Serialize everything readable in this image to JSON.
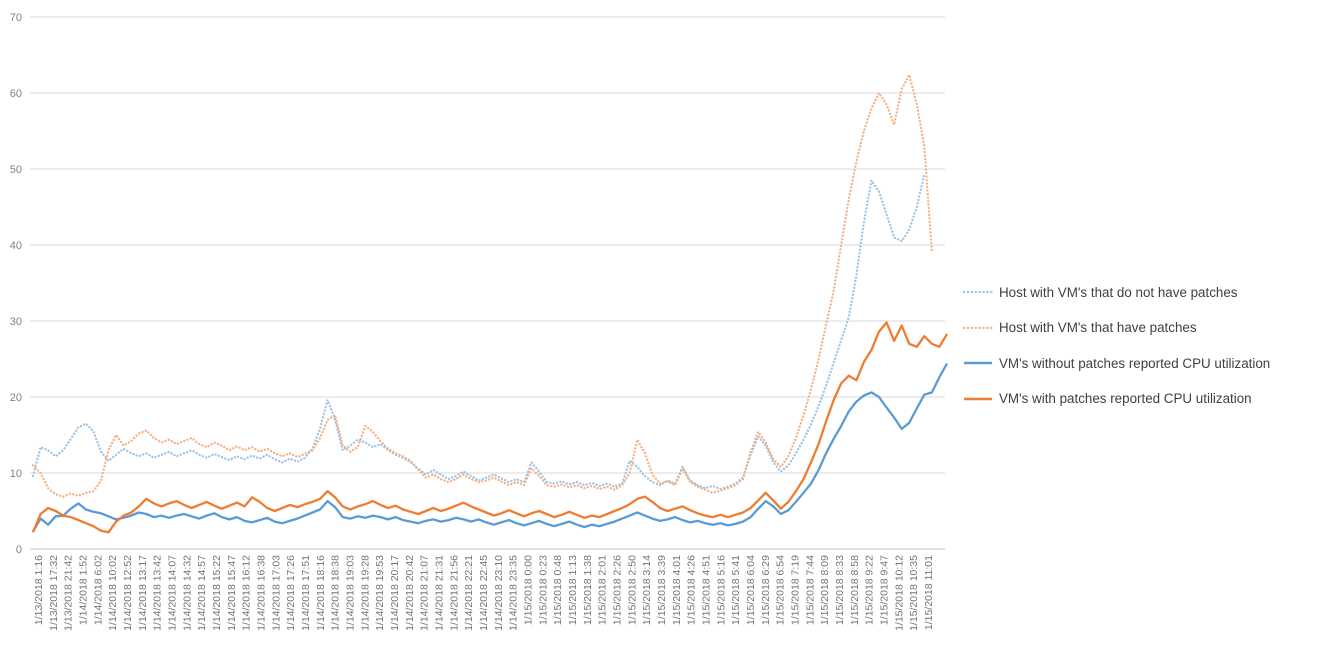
{
  "chart_data": {
    "type": "line",
    "title": "",
    "ylim": [
      0,
      70
    ],
    "y_tick_step": 10,
    "grid": true,
    "legend_position": "right",
    "y_tick_labels": [
      "0",
      "10",
      "20",
      "30",
      "40",
      "50",
      "60",
      "70"
    ],
    "x_tick_labels": [
      "1/13/2018 1:16",
      "1/13/2018 17:32",
      "1/13/2018 21:42",
      "1/14/2018 1:52",
      "1/14/2018 6:02",
      "1/14/2018 10:02",
      "1/14/2018 12:52",
      "1/14/2018 13:17",
      "1/14/2018 13:42",
      "1/14/2018 14:07",
      "1/14/2018 14:32",
      "1/14/2018 14:57",
      "1/14/2018 15:22",
      "1/14/2018 15:47",
      "1/14/2018 16:12",
      "1/14/2018 16:38",
      "1/14/2018 17:03",
      "1/14/2018 17:26",
      "1/14/2018 17:51",
      "1/14/2018 18:16",
      "1/14/2018 18:38",
      "1/14/2018 19:03",
      "1/14/2018 19:28",
      "1/14/2018 19:53",
      "1/14/2018 20:17",
      "1/14/2018 20:42",
      "1/14/2018 21:07",
      "1/14/2018 21:31",
      "1/14/2018 21:56",
      "1/14/2018 22:21",
      "1/14/2018 22:45",
      "1/14/2018 23:10",
      "1/14/2018 23:35",
      "1/15/2018 0:00",
      "1/15/2018 0:23",
      "1/15/2018 0:48",
      "1/15/2018 1:13",
      "1/15/2018 1:38",
      "1/15/2018 2:01",
      "1/15/2018 2:26",
      "1/15/2018 2:50",
      "1/15/2018 3:14",
      "1/15/2018 3:39",
      "1/15/2018 4:01",
      "1/15/2018 4:26",
      "1/15/2018 4:51",
      "1/15/2018 5:16",
      "1/15/2018 5:41",
      "1/15/2018 6:04",
      "1/15/2018 6:29",
      "1/15/2018 6:54",
      "1/15/2018 7:19",
      "1/15/2018 7:44",
      "1/15/2018 8:09",
      "1/15/2018 8:33",
      "1/15/2018 8:58",
      "1/15/2018 9:22",
      "1/15/2018 9:47",
      "1/15/2018 10:12",
      "1/15/2018 10:35",
      "1/15/2018 11:01"
    ],
    "colors": {
      "grid": "#D9D9D9",
      "axis_line": "#BFBFBF",
      "tick_text": "#757575"
    },
    "series": [
      {
        "name": "Host with VM's that do not have patches",
        "key": "host-without-patches",
        "color": "#9DC3E6",
        "dash": "dot",
        "values": [
          9.6,
          13.4,
          13.0,
          12.2,
          13.0,
          14.5,
          16.0,
          16.5,
          15.5,
          12.8,
          11.6,
          12.4,
          13.2,
          12.6,
          12.2,
          12.6,
          12.0,
          12.4,
          12.8,
          12.2,
          12.6,
          13.0,
          12.4,
          12.0,
          12.5,
          12.1,
          11.7,
          12.2,
          11.8,
          12.3,
          11.9,
          12.4,
          11.8,
          11.4,
          11.9,
          11.5,
          12.0,
          13.2,
          15.8,
          19.6,
          17.0,
          13.0,
          13.6,
          14.4,
          14.0,
          13.4,
          13.8,
          13.0,
          12.4,
          12.0,
          11.4,
          10.6,
          9.8,
          10.4,
          9.8,
          9.2,
          9.6,
          10.2,
          9.6,
          9.0,
          9.4,
          9.8,
          9.3,
          8.8,
          9.2,
          8.8,
          11.4,
          10.2,
          8.8,
          8.6,
          8.9,
          8.5,
          8.8,
          8.4,
          8.7,
          8.3,
          8.6,
          8.2,
          8.6,
          11.6,
          10.8,
          9.6,
          8.8,
          8.4,
          9.0,
          8.6,
          10.8,
          9.0,
          8.4,
          8.0,
          8.3,
          7.9,
          8.2,
          8.6,
          9.4,
          12.4,
          14.8,
          13.6,
          11.4,
          10.2,
          11.0,
          12.6,
          14.4,
          16.4,
          18.8,
          21.5,
          24.5,
          27.5,
          30.5,
          36.0,
          43.0,
          48.5,
          47.0,
          44.0,
          41.0,
          40.5,
          42.0,
          45.0,
          49.3,
          null,
          null,
          null
        ]
      },
      {
        "name": "Host with VM's that have patches",
        "key": "host-with-patches",
        "color": "#F4B183",
        "dash": "dot",
        "values": [
          11.0,
          10.0,
          8.0,
          7.2,
          6.9,
          7.3,
          7.0,
          7.4,
          7.6,
          9.0,
          13.0,
          15.0,
          13.6,
          14.2,
          15.2,
          15.6,
          14.6,
          14.0,
          14.4,
          13.8,
          14.2,
          14.6,
          13.8,
          13.4,
          14.0,
          13.6,
          13.0,
          13.5,
          13.0,
          13.4,
          12.8,
          13.2,
          12.6,
          12.2,
          12.6,
          12.1,
          12.5,
          13.0,
          14.6,
          17.0,
          17.6,
          13.6,
          12.8,
          13.4,
          16.2,
          15.4,
          14.2,
          13.2,
          12.6,
          12.2,
          11.6,
          10.4,
          9.4,
          9.8,
          9.2,
          8.8,
          9.2,
          9.8,
          9.2,
          8.8,
          9.0,
          9.4,
          8.9,
          8.4,
          8.8,
          8.4,
          10.6,
          9.6,
          8.4,
          8.2,
          8.5,
          8.1,
          8.4,
          8.0,
          8.3,
          7.9,
          8.2,
          7.8,
          8.4,
          10.0,
          14.4,
          12.6,
          9.8,
          8.6,
          8.9,
          8.4,
          10.6,
          8.8,
          8.2,
          7.8,
          7.4,
          7.7,
          8.0,
          8.4,
          9.2,
          12.8,
          15.4,
          14.0,
          11.8,
          10.8,
          12.2,
          14.6,
          17.6,
          21.0,
          25.0,
          29.5,
          34.0,
          40.0,
          46.0,
          51.0,
          55.0,
          58.0,
          60.0,
          58.5,
          55.8,
          60.5,
          62.4,
          58.5,
          53.0,
          39.0,
          null,
          null
        ]
      },
      {
        "name": "VM's without patches reported CPU utilization",
        "key": "vm-without-patches",
        "color": "#5B9BD5",
        "dash": "solid",
        "values": [
          2.3,
          4.0,
          3.2,
          4.3,
          4.4,
          5.3,
          6.0,
          5.2,
          4.9,
          4.7,
          4.3,
          3.9,
          4.1,
          4.4,
          4.8,
          4.6,
          4.2,
          4.4,
          4.1,
          4.4,
          4.6,
          4.3,
          4.0,
          4.4,
          4.7,
          4.2,
          3.9,
          4.2,
          3.7,
          3.5,
          3.8,
          4.1,
          3.6,
          3.4,
          3.7,
          4.0,
          4.4,
          4.8,
          5.2,
          6.3,
          5.5,
          4.2,
          4.0,
          4.3,
          4.1,
          4.4,
          4.2,
          3.9,
          4.2,
          3.8,
          3.6,
          3.4,
          3.7,
          3.9,
          3.6,
          3.8,
          4.1,
          3.9,
          3.6,
          3.9,
          3.5,
          3.2,
          3.5,
          3.8,
          3.4,
          3.1,
          3.4,
          3.7,
          3.3,
          3.0,
          3.3,
          3.6,
          3.2,
          2.9,
          3.2,
          3.0,
          3.3,
          3.6,
          4.0,
          4.4,
          4.8,
          4.4,
          4.0,
          3.7,
          3.9,
          4.2,
          3.8,
          3.5,
          3.7,
          3.4,
          3.2,
          3.4,
          3.1,
          3.3,
          3.6,
          4.2,
          5.3,
          6.3,
          5.6,
          4.6,
          5.1,
          6.2,
          7.4,
          8.6,
          10.4,
          12.6,
          14.5,
          16.2,
          18.1,
          19.4,
          20.2,
          20.6,
          20.0,
          18.6,
          17.3,
          15.8,
          16.6,
          18.5,
          20.3,
          20.6,
          22.6,
          24.4
        ]
      },
      {
        "name": "VM's with patches reported CPU utilization",
        "key": "vm-with-patches",
        "color": "#ED7D31",
        "dash": "solid",
        "values": [
          2.2,
          4.6,
          5.4,
          5.0,
          4.4,
          4.2,
          3.8,
          3.4,
          3.0,
          2.4,
          2.2,
          3.6,
          4.4,
          4.8,
          5.6,
          6.6,
          6.0,
          5.6,
          6.0,
          6.3,
          5.8,
          5.4,
          5.8,
          6.2,
          5.7,
          5.3,
          5.7,
          6.1,
          5.6,
          6.8,
          6.2,
          5.4,
          5.0,
          5.4,
          5.8,
          5.5,
          5.9,
          6.2,
          6.6,
          7.6,
          6.8,
          5.6,
          5.2,
          5.6,
          5.9,
          6.3,
          5.8,
          5.4,
          5.7,
          5.2,
          4.9,
          4.6,
          5.0,
          5.4,
          5.0,
          5.3,
          5.7,
          6.1,
          5.6,
          5.2,
          4.8,
          4.4,
          4.7,
          5.1,
          4.7,
          4.3,
          4.7,
          5.0,
          4.6,
          4.2,
          4.5,
          4.9,
          4.5,
          4.1,
          4.4,
          4.2,
          4.6,
          5.0,
          5.4,
          5.9,
          6.6,
          6.9,
          6.2,
          5.4,
          5.0,
          5.3,
          5.6,
          5.1,
          4.7,
          4.4,
          4.2,
          4.5,
          4.2,
          4.5,
          4.8,
          5.4,
          6.4,
          7.4,
          6.4,
          5.3,
          6.2,
          7.6,
          9.2,
          11.4,
          13.8,
          16.8,
          19.6,
          21.8,
          22.8,
          22.2,
          24.6,
          26.2,
          28.6,
          29.8,
          27.4,
          29.4,
          27.0,
          26.6,
          28.0,
          27.0,
          26.6,
          28.3
        ]
      }
    ]
  }
}
